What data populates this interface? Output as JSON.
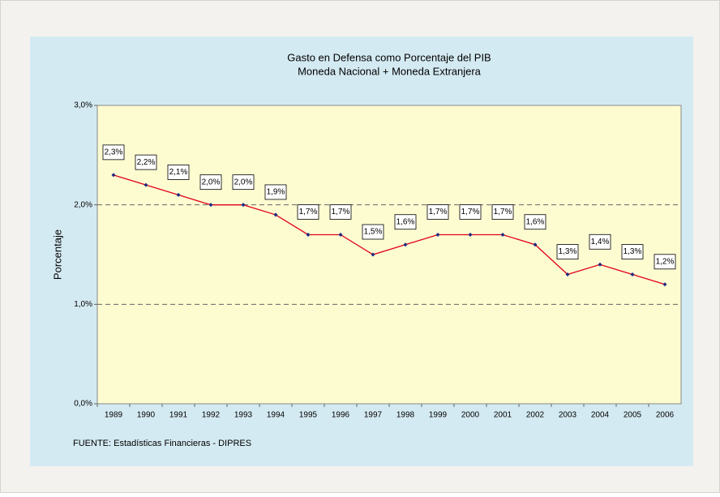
{
  "chart_data": {
    "type": "line",
    "title": "Gasto en Defensa como Porcentaje del PIB",
    "subtitle": "Moneda Nacional + Moneda Extranjera",
    "y_label": "Porcentaje",
    "source": "FUENTE: Estadísticas Financieras - DIPRES",
    "categories": [
      "1989",
      "1990",
      "1991",
      "1992",
      "1993",
      "1994",
      "1995",
      "1996",
      "1997",
      "1998",
      "1999",
      "2000",
      "2001",
      "2002",
      "2003",
      "2004",
      "2005",
      "2006"
    ],
    "series": [
      {
        "name": "Gasto en Defensa",
        "color": "#e0001b",
        "marker_color": "#1f2a80",
        "values": [
          2.3,
          2.2,
          2.1,
          2.0,
          2.0,
          1.9,
          1.7,
          1.7,
          1.5,
          1.6,
          1.7,
          1.7,
          1.7,
          1.6,
          1.3,
          1.4,
          1.3,
          1.2
        ],
        "value_labels": [
          "2,3%",
          "2,2%",
          "2,1%",
          "2,0%",
          "2,0%",
          "1,9%",
          "1,7%",
          "1,7%",
          "1,5%",
          "1,6%",
          "1,7%",
          "1,7%",
          "1,7%",
          "1,6%",
          "1,3%",
          "1,4%",
          "1,3%",
          "1,2%"
        ]
      }
    ],
    "ylim": [
      0,
      3
    ],
    "yticks": [
      {
        "value": 0,
        "label": "0,0%"
      },
      {
        "value": 1,
        "label": "1,0%"
      },
      {
        "value": 2,
        "label": "2,0%"
      },
      {
        "value": 3,
        "label": "3,0%"
      }
    ],
    "grid": true
  }
}
